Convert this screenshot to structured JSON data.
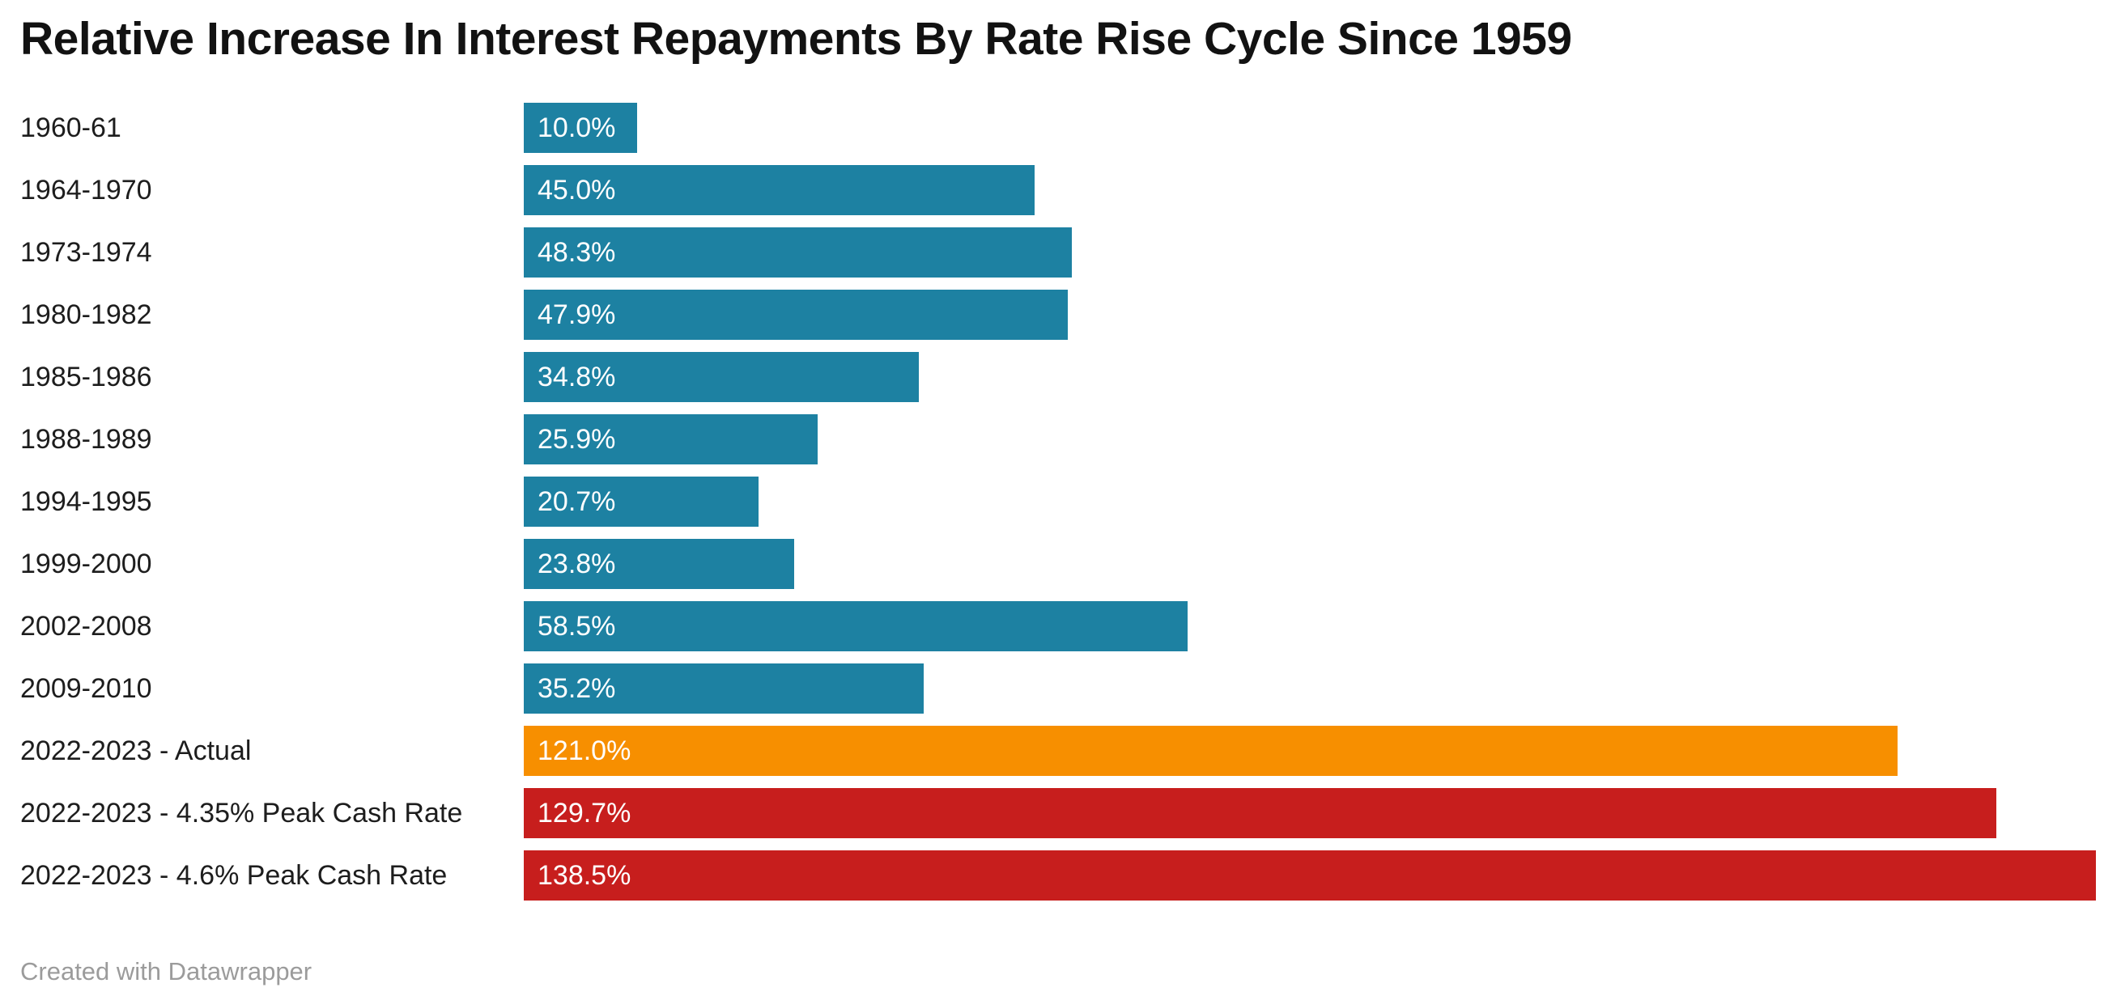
{
  "chart_data": {
    "type": "bar",
    "orientation": "horizontal",
    "title": "Relative Increase In Interest Repayments By Rate Rise Cycle Since 1959",
    "xlabel": "",
    "ylabel": "",
    "xlim": [
      0,
      138.5
    ],
    "grid": false,
    "legend": false,
    "categories": [
      "1960-61",
      "1964-1970",
      "1973-1974",
      "1980-1982",
      "1985-1986",
      "1988-1989",
      "1994-1995",
      "1999-2000",
      "2002-2008",
      "2009-2010",
      "2022-2023 - Actual",
      "2022-2023 - 4.35% Peak Cash Rate",
      "2022-2023 - 4.6% Peak Cash Rate"
    ],
    "values": [
      10.0,
      45.0,
      48.3,
      47.9,
      34.8,
      25.9,
      20.7,
      23.8,
      58.5,
      35.2,
      121.0,
      129.7,
      138.5
    ],
    "value_labels": [
      "10.0%",
      "45.0%",
      "48.3%",
      "47.9%",
      "34.8%",
      "25.9%",
      "20.7%",
      "23.8%",
      "58.5%",
      "35.2%",
      "121.0%",
      "129.7%",
      "138.5%"
    ],
    "bar_color_keys": [
      "teal",
      "teal",
      "teal",
      "teal",
      "teal",
      "teal",
      "teal",
      "teal",
      "teal",
      "teal",
      "orange",
      "red",
      "red"
    ]
  },
  "colors": {
    "teal": "#1d81a2",
    "orange": "#f78f00",
    "red": "#c71e1d",
    "title_text": "#121212",
    "label_text": "#1d1d1d",
    "value_text": "#ffffff",
    "footer_text": "#9b9b9b",
    "background": "#ffffff"
  },
  "footer": {
    "credit": "Created with Datawrapper"
  }
}
